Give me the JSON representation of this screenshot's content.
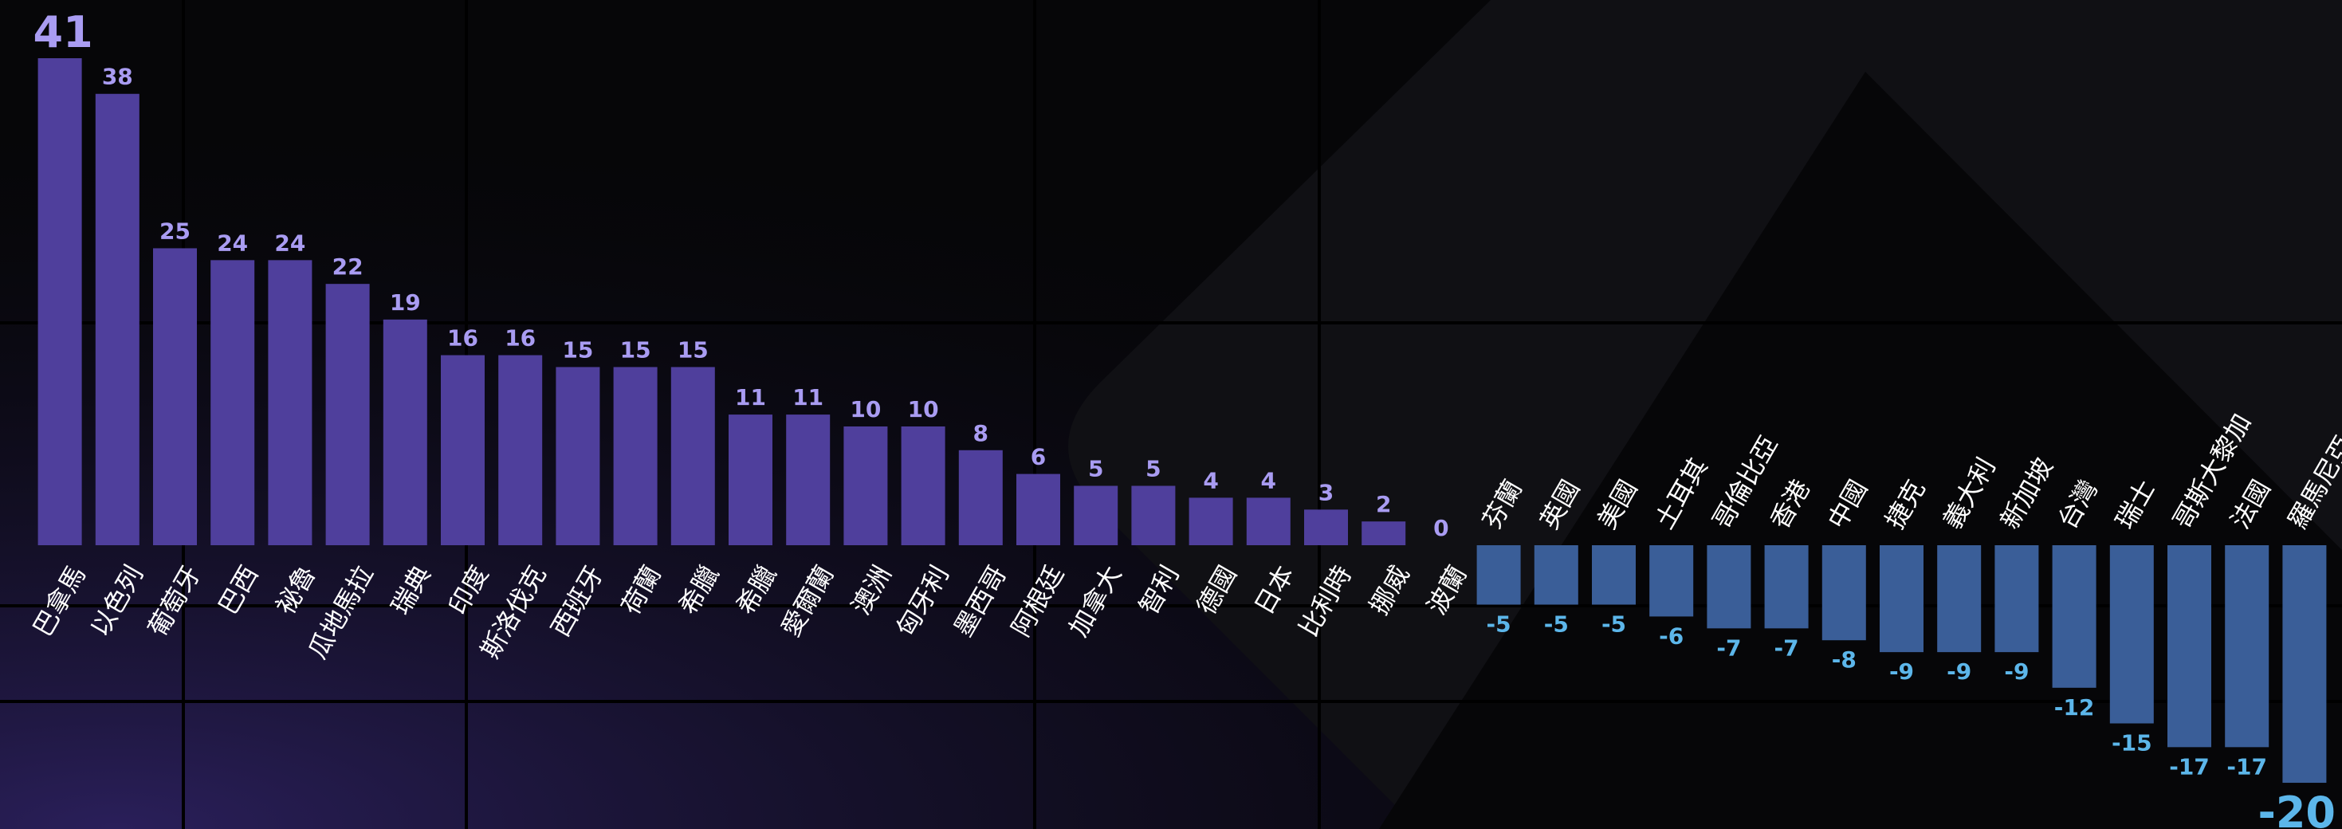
{
  "chart_data": {
    "type": "bar",
    "categories": [
      "巴拿馬",
      "以色列",
      "葡萄牙",
      "巴西",
      "祕魯",
      "瓜地馬拉",
      "瑞典",
      "印度",
      "斯洛伐克",
      "西班牙",
      "荷蘭",
      "希臘",
      "希臘",
      "愛爾蘭",
      "澳洲",
      "匈牙利",
      "墨西哥",
      "阿根廷",
      "加拿大",
      "智利",
      "德國",
      "日本",
      "比利時",
      "挪威",
      "波蘭",
      "芬蘭",
      "英國",
      "美國",
      "土耳其",
      "哥倫比亞",
      "香港",
      "中國",
      "捷克",
      "義大利",
      "新加坡",
      "台灣",
      "瑞士",
      "哥斯大黎加",
      "法國",
      "羅馬尼亞"
    ],
    "values": [
      41,
      38,
      25,
      24,
      24,
      22,
      19,
      16,
      16,
      15,
      15,
      15,
      11,
      11,
      10,
      10,
      8,
      6,
      5,
      5,
      4,
      4,
      3,
      2,
      0,
      -5,
      -5,
      -5,
      -6,
      -7,
      -7,
      -8,
      -9,
      -9,
      -9,
      -12,
      -15,
      -17,
      -17,
      -20
    ],
    "colors": {
      "positive": "#4f3f9c",
      "negative": "#3a5e98"
    }
  }
}
